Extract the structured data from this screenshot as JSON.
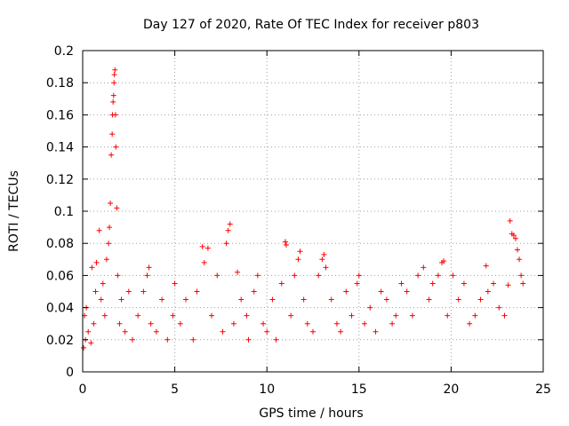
{
  "chart_data": {
    "type": "scatter",
    "title": "Day 127 of 2020, Rate Of TEC Index for receiver p803",
    "xlabel": "GPS time / hours",
    "ylabel": "ROTI / TECUs",
    "xlim": [
      0,
      25
    ],
    "ylim": [
      0,
      0.2
    ],
    "x_ticks": [
      0,
      5,
      10,
      15,
      20,
      25
    ],
    "x_tick_labels": [
      "0",
      "5",
      "10",
      "15",
      "20",
      "25"
    ],
    "y_ticks": [
      0,
      0.02,
      0.04,
      0.06,
      0.08,
      0.1,
      0.12,
      0.14,
      0.16,
      0.18,
      0.2
    ],
    "y_tick_labels": [
      "0",
      "0.02",
      "0.04",
      "0.06",
      "0.08",
      "0.1",
      "0.12",
      "0.14",
      "0.16",
      "0.18",
      "0.2"
    ],
    "grid": true,
    "marker": "+",
    "marker_color": "#ff0000",
    "series": [
      {
        "name": "ROTI",
        "x": [
          0.05,
          0.1,
          0.15,
          0.2,
          0.3,
          0.45,
          0.5,
          0.6,
          0.7,
          0.75,
          0.9,
          1.0,
          1.1,
          1.2,
          1.3,
          1.4,
          1.45,
          1.5,
          1.55,
          1.6,
          1.62,
          1.65,
          1.68,
          1.7,
          1.72,
          1.75,
          1.78,
          1.8,
          1.85,
          1.9,
          2.0,
          2.1,
          2.3,
          2.5,
          2.7,
          3.0,
          3.3,
          3.5,
          3.6,
          3.7,
          4.0,
          4.3,
          4.6,
          4.9,
          5.0,
          5.3,
          5.6,
          6.0,
          6.2,
          6.5,
          6.6,
          6.8,
          7.0,
          7.3,
          7.6,
          7.8,
          7.9,
          8.0,
          8.2,
          8.4,
          8.6,
          8.9,
          9.0,
          9.3,
          9.5,
          9.8,
          10.0,
          10.3,
          10.5,
          10.8,
          11.0,
          11.05,
          11.3,
          11.5,
          11.7,
          11.8,
          12.0,
          12.2,
          12.5,
          12.8,
          13.0,
          13.1,
          13.2,
          13.5,
          13.8,
          14.0,
          14.3,
          14.6,
          14.9,
          15.0,
          15.3,
          15.6,
          15.9,
          16.2,
          16.5,
          16.8,
          17.0,
          17.3,
          17.6,
          17.9,
          18.2,
          18.5,
          18.8,
          19.0,
          19.3,
          19.5,
          19.6,
          19.8,
          20.1,
          20.4,
          20.7,
          21.0,
          21.3,
          21.6,
          21.9,
          22.0,
          22.3,
          22.6,
          22.9,
          23.1,
          23.2,
          23.3,
          23.4,
          23.5,
          23.6,
          23.7,
          23.8,
          23.9
        ],
        "y": [
          0.015,
          0.035,
          0.02,
          0.04,
          0.025,
          0.018,
          0.065,
          0.03,
          0.05,
          0.068,
          0.088,
          0.045,
          0.055,
          0.035,
          0.07,
          0.08,
          0.09,
          0.105,
          0.135,
          0.148,
          0.16,
          0.168,
          0.172,
          0.18,
          0.185,
          0.188,
          0.16,
          0.14,
          0.102,
          0.06,
          0.03,
          0.045,
          0.025,
          0.05,
          0.02,
          0.035,
          0.05,
          0.06,
          0.065,
          0.03,
          0.025,
          0.045,
          0.02,
          0.035,
          0.055,
          0.03,
          0.045,
          0.02,
          0.05,
          0.078,
          0.068,
          0.077,
          0.035,
          0.06,
          0.025,
          0.08,
          0.088,
          0.092,
          0.03,
          0.062,
          0.045,
          0.035,
          0.02,
          0.05,
          0.06,
          0.03,
          0.025,
          0.045,
          0.02,
          0.055,
          0.081,
          0.079,
          0.035,
          0.06,
          0.07,
          0.075,
          0.045,
          0.03,
          0.025,
          0.06,
          0.07,
          0.073,
          0.065,
          0.045,
          0.03,
          0.025,
          0.05,
          0.035,
          0.055,
          0.06,
          0.03,
          0.04,
          0.025,
          0.05,
          0.045,
          0.03,
          0.035,
          0.055,
          0.05,
          0.035,
          0.06,
          0.065,
          0.045,
          0.055,
          0.06,
          0.068,
          0.069,
          0.035,
          0.06,
          0.045,
          0.055,
          0.03,
          0.035,
          0.045,
          0.066,
          0.05,
          0.055,
          0.04,
          0.035,
          0.054,
          0.094,
          0.086,
          0.085,
          0.083,
          0.076,
          0.07,
          0.06,
          0.055
        ]
      }
    ]
  }
}
